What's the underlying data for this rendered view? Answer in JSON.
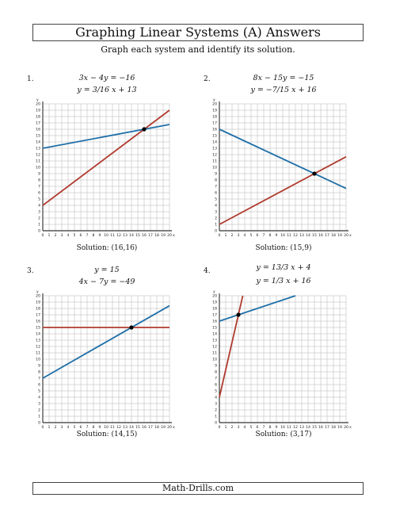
{
  "header": {
    "title": "Graphing Linear Systems (A) Answers",
    "instructions": "Graph each system and identify its solution."
  },
  "footer": "Math-Drills.com",
  "colors": {
    "line1": "#b03a2e",
    "line2": "#1f6fa8",
    "grid": "#b5b5b5",
    "point": "#000000"
  },
  "axis": {
    "x_label": "x",
    "y_label": "y",
    "x_ticks": [
      "0",
      "1",
      "2",
      "3",
      "4",
      "5",
      "6",
      "7",
      "8",
      "9",
      "10",
      "11",
      "12",
      "13",
      "14",
      "15",
      "16",
      "17",
      "18",
      "19",
      "20"
    ],
    "y_ticks": [
      "0",
      "1",
      "2",
      "3",
      "4",
      "5",
      "6",
      "7",
      "8",
      "9",
      "10",
      "11",
      "12",
      "13",
      "14",
      "15",
      "16",
      "17",
      "18",
      "19",
      "20"
    ]
  },
  "problems": [
    {
      "number": "1.",
      "eq1": "3x − 4y = −16",
      "eq2": "y = 3/16 x + 13",
      "solution": "Solution:  (16,16)"
    },
    {
      "number": "2.",
      "eq1": "8x − 15y = −15",
      "eq2": "y = −7/15 x + 16",
      "solution": "Solution:  (15,9)"
    },
    {
      "number": "3.",
      "eq1": "y = 15",
      "eq2": "4x − 7y = −49",
      "solution": "Solution:  (14,15)"
    },
    {
      "number": "4.",
      "eq1": "y = 13/3 x + 4",
      "eq2": "y = 1/3 x + 16",
      "solution": "Solution:  (3,17)"
    }
  ],
  "chart_data": [
    {
      "type": "line",
      "xlim": [
        0,
        20
      ],
      "ylim": [
        0,
        20
      ],
      "grid": true,
      "series": [
        {
          "x": [
            0,
            20
          ],
          "y": [
            4,
            19
          ]
        },
        {
          "x": [
            0,
            20
          ],
          "y": [
            13,
            16.75
          ]
        }
      ],
      "points": [
        {
          "x": 16,
          "y": 16
        }
      ]
    },
    {
      "type": "line",
      "xlim": [
        0,
        20
      ],
      "ylim": [
        0,
        20
      ],
      "grid": true,
      "series": [
        {
          "x": [
            0,
            20
          ],
          "y": [
            1,
            11.667
          ]
        },
        {
          "x": [
            0,
            20
          ],
          "y": [
            16,
            6.667
          ]
        }
      ],
      "points": [
        {
          "x": 15,
          "y": 9
        }
      ]
    },
    {
      "type": "line",
      "xlim": [
        0,
        20
      ],
      "ylim": [
        0,
        20
      ],
      "grid": true,
      "series": [
        {
          "x": [
            0,
            20
          ],
          "y": [
            15,
            15
          ]
        },
        {
          "x": [
            0,
            20
          ],
          "y": [
            7,
            18.429
          ]
        }
      ],
      "points": [
        {
          "x": 14,
          "y": 15
        }
      ]
    },
    {
      "type": "line",
      "xlim": [
        0,
        20
      ],
      "ylim": [
        0,
        20
      ],
      "grid": true,
      "series": [
        {
          "x": [
            0,
            3.692
          ],
          "y": [
            4,
            20
          ]
        },
        {
          "x": [
            0,
            12
          ],
          "y": [
            16,
            20
          ]
        }
      ],
      "points": [
        {
          "x": 3,
          "y": 17
        }
      ]
    }
  ]
}
